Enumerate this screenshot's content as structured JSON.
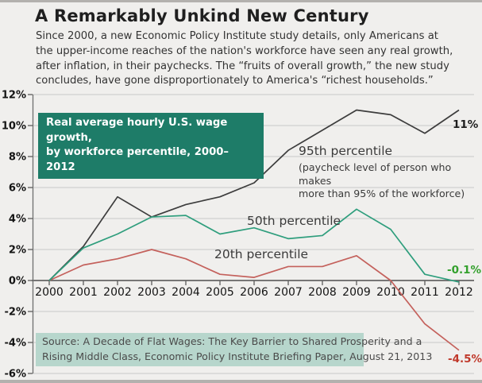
{
  "page": {
    "bg_color": "#f0efed",
    "frame_bar_color": "#b3b1ae"
  },
  "header": {
    "title": "A Remarkably Unkind New Century",
    "subtitle_lines": [
      "Since 2000, a new Economic Policy Institute study details, only Americans at",
      "the upper-income reaches of the nation's workforce have seen any real growth,",
      "after inflation, in their paychecks. The “fruits of overall growth,” the new study",
      "concludes, have gone disproportionately to America's “richest households.”"
    ]
  },
  "chart_data": {
    "type": "line",
    "label_box": {
      "lines": [
        "Real average hourly U.S. wage growth,",
        "by workforce percentile, 2000–2012"
      ],
      "bg": "#1e7c68",
      "text_color": "#ffffff"
    },
    "x_labels": [
      "2000",
      "2001",
      "2002",
      "2003",
      "2004",
      "2005",
      "2006",
      "2007",
      "2008",
      "2009",
      "2010",
      "2011",
      "2012"
    ],
    "ytick_labels": [
      "12%",
      "10%",
      "8%",
      "6%",
      "4%",
      "2%",
      "0%",
      "-2%",
      "-4%",
      "-6%"
    ],
    "ytick_values": [
      12,
      10,
      8,
      6,
      4,
      2,
      0,
      -2,
      -4,
      -6
    ],
    "ylim": [
      -6,
      12
    ],
    "grid": "horizontal",
    "series": [
      {
        "name": "95th percentile",
        "color": "#3d3d3d",
        "values": [
          0,
          2.2,
          5.4,
          4.1,
          4.9,
          5.4,
          6.3,
          8.4,
          9.7,
          11.0,
          10.7,
          9.5,
          11.0
        ],
        "end_label": "11%",
        "end_label_color": "#1d1d1d"
      },
      {
        "name": "50th percentile",
        "color": "#2f9e7d",
        "values": [
          0,
          2.1,
          3.0,
          4.1,
          4.2,
          3.0,
          3.4,
          2.7,
          2.9,
          4.6,
          3.3,
          0.4,
          -0.1
        ],
        "end_label": "-0.1%",
        "end_label_color": "#33a02c"
      },
      {
        "name": "20th percentile",
        "color": "#c4615c",
        "values": [
          0,
          1.0,
          1.4,
          2.0,
          1.4,
          0.4,
          0.2,
          0.9,
          0.9,
          1.6,
          0.0,
          -2.8,
          -4.5
        ],
        "end_label": "-4.5%",
        "end_label_color": "#c0392b"
      }
    ],
    "annotations": {
      "p95_title": "95th percentile",
      "p95_sub_lines": [
        "(paycheck level of person who makes",
        "more than 95% of the workforce)"
      ],
      "p50_title": "50th percentile",
      "p20_title": "20th percentile"
    }
  },
  "source": {
    "bg": "#b7d6cc",
    "lines": [
      "Source: A Decade of Flat Wages: The Key Barrier to Shared Prosperity and a",
      "Rising Middle Class, Economic Policy Institute Briefing Paper, August 21, 2013"
    ]
  }
}
